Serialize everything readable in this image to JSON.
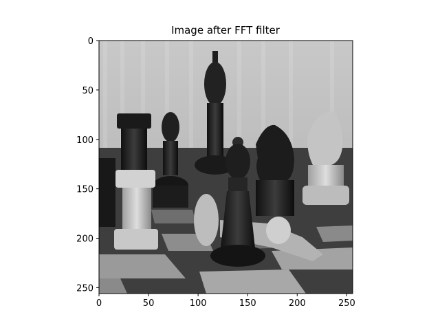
{
  "figure": {
    "title": "Image after FFT filter",
    "background": "#ffffff",
    "axis_color": "#000000"
  },
  "image": {
    "description_colormap": "gray",
    "extent_x": [
      0,
      256
    ],
    "extent_y": [
      0,
      256
    ],
    "y_inverted": true
  },
  "chart_data": {
    "type": "image",
    "title": "Image after FFT filter",
    "xlim": [
      0,
      256
    ],
    "ylim": [
      256,
      0
    ],
    "x_ticks": [
      0,
      50,
      100,
      150,
      200,
      250
    ],
    "y_ticks": [
      0,
      50,
      100,
      150,
      200,
      250
    ],
    "x_tick_labels": [
      "0",
      "50",
      "100",
      "150",
      "200",
      "250"
    ],
    "y_tick_labels": [
      "0",
      "50",
      "100",
      "150",
      "200",
      "250"
    ],
    "grid": false,
    "colormap": "gray"
  }
}
